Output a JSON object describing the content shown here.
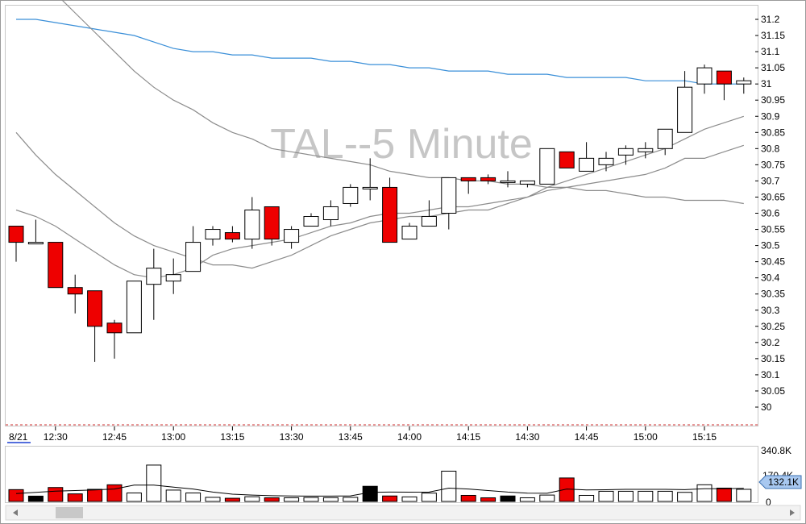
{
  "chart_title": "TAL--5 Minute",
  "date_label": "8/21",
  "price_axis_ticks": [
    "31.2",
    "31.15",
    "31.1",
    "31.05",
    "31",
    "30.95",
    "30.9",
    "30.85",
    "30.8",
    "30.75",
    "30.7",
    "30.65",
    "30.6",
    "30.55",
    "30.5",
    "30.45",
    "30.4",
    "30.35",
    "30.3",
    "30.25",
    "30.2",
    "30.15",
    "30.1",
    "30.05",
    "30"
  ],
  "time_axis_ticks": [
    "12:30",
    "12:45",
    "13:00",
    "13:15",
    "13:30",
    "13:45",
    "14:00",
    "14:15",
    "14:30",
    "14:45",
    "15:00",
    "15:15"
  ],
  "volume_axis": {
    "max_label": "340.8K",
    "mid_label": "170.4K",
    "zero_label": "0",
    "current_label": "132.1K"
  },
  "colors": {
    "up": "#ffffff",
    "down": "#ee0000",
    "volume_neutral": "#000000",
    "ma_long": "#3a8fd8",
    "ma_short": "#8c8c8c",
    "grid": "#d03030",
    "background": "#ffffff"
  },
  "chart_data": [
    {
      "type": "candlestick",
      "title": "TAL--5 Minute",
      "y_range": [
        29.97,
        31.22
      ],
      "x_time_start": "12:20",
      "bar_interval_minutes": 5,
      "ohlc": [
        {
          "o": 30.56,
          "h": 30.56,
          "l": 30.45,
          "c": 30.51
        },
        {
          "o": 30.51,
          "h": 30.58,
          "l": 30.51,
          "c": 30.51
        },
        {
          "o": 30.51,
          "h": 30.51,
          "l": 30.37,
          "c": 30.37
        },
        {
          "o": 30.37,
          "h": 30.41,
          "l": 30.29,
          "c": 30.35
        },
        {
          "o": 30.36,
          "h": 30.36,
          "l": 30.14,
          "c": 30.25
        },
        {
          "o": 30.26,
          "h": 30.27,
          "l": 30.15,
          "c": 30.23
        },
        {
          "o": 30.23,
          "h": 30.39,
          "l": 30.23,
          "c": 30.39
        },
        {
          "o": 30.38,
          "h": 30.49,
          "l": 30.27,
          "c": 30.43
        },
        {
          "o": 30.39,
          "h": 30.46,
          "l": 30.35,
          "c": 30.41
        },
        {
          "o": 30.42,
          "h": 30.56,
          "l": 30.42,
          "c": 30.51
        },
        {
          "o": 30.52,
          "h": 30.56,
          "l": 30.5,
          "c": 30.55
        },
        {
          "o": 30.54,
          "h": 30.56,
          "l": 30.51,
          "c": 30.52
        },
        {
          "o": 30.52,
          "h": 30.65,
          "l": 30.49,
          "c": 30.61
        },
        {
          "o": 30.62,
          "h": 30.62,
          "l": 30.5,
          "c": 30.52
        },
        {
          "o": 30.51,
          "h": 30.56,
          "l": 30.49,
          "c": 30.55
        },
        {
          "o": 30.56,
          "h": 30.6,
          "l": 30.56,
          "c": 30.59
        },
        {
          "o": 30.58,
          "h": 30.64,
          "l": 30.56,
          "c": 30.62
        },
        {
          "o": 30.63,
          "h": 30.69,
          "l": 30.62,
          "c": 30.68
        },
        {
          "o": 30.68,
          "h": 30.77,
          "l": 30.64,
          "c": 30.68
        },
        {
          "o": 30.68,
          "h": 30.71,
          "l": 30.51,
          "c": 30.51
        },
        {
          "o": 30.52,
          "h": 30.57,
          "l": 30.52,
          "c": 30.56
        },
        {
          "o": 30.56,
          "h": 30.64,
          "l": 30.56,
          "c": 30.59
        },
        {
          "o": 30.6,
          "h": 30.71,
          "l": 30.55,
          "c": 30.71
        },
        {
          "o": 30.71,
          "h": 30.71,
          "l": 30.66,
          "c": 30.7
        },
        {
          "o": 30.71,
          "h": 30.72,
          "l": 30.69,
          "c": 30.7
        },
        {
          "o": 30.7,
          "h": 30.73,
          "l": 30.68,
          "c": 30.7
        },
        {
          "o": 30.69,
          "h": 30.7,
          "l": 30.68,
          "c": 30.7
        },
        {
          "o": 30.69,
          "h": 30.8,
          "l": 30.69,
          "c": 30.8
        },
        {
          "o": 30.79,
          "h": 30.79,
          "l": 30.74,
          "c": 30.74
        },
        {
          "o": 30.73,
          "h": 30.82,
          "l": 30.73,
          "c": 30.77
        },
        {
          "o": 30.75,
          "h": 30.79,
          "l": 30.73,
          "c": 30.77
        },
        {
          "o": 30.78,
          "h": 30.81,
          "l": 30.75,
          "c": 30.8
        },
        {
          "o": 30.79,
          "h": 30.82,
          "l": 30.77,
          "c": 30.8
        },
        {
          "o": 30.8,
          "h": 30.86,
          "l": 30.78,
          "c": 30.86
        },
        {
          "o": 30.85,
          "h": 31.04,
          "l": 30.85,
          "c": 30.99
        },
        {
          "o": 31.0,
          "h": 31.06,
          "l": 30.97,
          "c": 31.05
        },
        {
          "o": 31.04,
          "h": 31.04,
          "l": 30.95,
          "c": 31.0
        },
        {
          "o": 31.0,
          "h": 31.02,
          "l": 30.97,
          "c": 31.01
        }
      ],
      "moving_averages": [
        {
          "color": "#3a8fd8",
          "values": [
            31.2,
            31.2,
            31.19,
            31.18,
            31.17,
            31.16,
            31.15,
            31.13,
            31.11,
            31.1,
            31.1,
            31.09,
            31.09,
            31.08,
            31.08,
            31.08,
            31.07,
            31.07,
            31.06,
            31.06,
            31.05,
            31.05,
            31.04,
            31.04,
            31.04,
            31.03,
            31.03,
            31.03,
            31.02,
            31.02,
            31.02,
            31.02,
            31.01,
            31.01,
            31.01,
            31.0,
            31.0,
            31.0
          ]
        },
        {
          "color": "#8c8c8c",
          "values": [
            31.42,
            31.34,
            31.28,
            31.22,
            31.16,
            31.1,
            31.04,
            30.99,
            30.95,
            30.92,
            30.88,
            30.85,
            30.83,
            30.8,
            30.79,
            30.78,
            30.77,
            30.76,
            30.75,
            30.73,
            30.72,
            30.71,
            30.71,
            30.7,
            30.7,
            30.69,
            30.69,
            30.68,
            30.68,
            30.67,
            30.67,
            30.66,
            30.65,
            30.65,
            30.64,
            30.64,
            30.64,
            30.63
          ]
        },
        {
          "color": "#8c8c8c",
          "values": [
            30.85,
            30.78,
            30.72,
            30.67,
            30.62,
            30.57,
            30.53,
            30.5,
            30.48,
            30.46,
            30.44,
            30.44,
            30.43,
            30.45,
            30.47,
            30.5,
            30.53,
            30.55,
            30.57,
            30.58,
            30.59,
            30.59,
            30.6,
            30.61,
            30.61,
            30.63,
            30.65,
            30.68,
            30.7,
            30.72,
            30.74,
            30.76,
            30.78,
            30.8,
            30.83,
            30.86,
            30.88,
            30.9
          ]
        },
        {
          "color": "#8c8c8c",
          "values": [
            30.61,
            30.59,
            30.56,
            30.52,
            30.48,
            30.44,
            30.41,
            30.4,
            30.41,
            30.43,
            30.47,
            30.49,
            30.5,
            30.51,
            30.52,
            30.54,
            30.56,
            30.57,
            30.59,
            30.6,
            30.6,
            30.61,
            30.62,
            30.62,
            30.63,
            30.64,
            30.65,
            30.67,
            30.68,
            30.69,
            30.7,
            30.71,
            30.72,
            30.74,
            30.77,
            30.77,
            30.79,
            30.81
          ]
        }
      ]
    },
    {
      "type": "bar",
      "title": "Volume",
      "y_range": [
        0,
        340800
      ],
      "values": [
        78000,
        35000,
        92000,
        50000,
        80000,
        110000,
        56000,
        240000,
        75000,
        56000,
        27000,
        21000,
        31000,
        24000,
        24000,
        26000,
        25000,
        27000,
        100000,
        36000,
        30000,
        55000,
        200000,
        40000,
        24000,
        36000,
        24000,
        42000,
        155000,
        40000,
        67000,
        67000,
        67000,
        67000,
        60000,
        110000,
        88000,
        80000
      ],
      "volume_colors": [
        "down",
        "neutral",
        "down",
        "down",
        "down",
        "down",
        "up",
        "up",
        "up",
        "up",
        "up",
        "down",
        "up",
        "down",
        "up",
        "up",
        "up",
        "up",
        "neutral",
        "down",
        "up",
        "up",
        "up",
        "down",
        "down",
        "neutral",
        "up",
        "up",
        "down",
        "up",
        "up",
        "up",
        "up",
        "up",
        "up",
        "up",
        "down",
        "up"
      ],
      "average_line": [
        52000,
        60000,
        68000,
        72000,
        76000,
        82000,
        108000,
        108000,
        94000,
        82000,
        62000,
        48000,
        42000,
        38000,
        36000,
        35000,
        35000,
        37000,
        60000,
        62000,
        61000,
        62000,
        88000,
        82000,
        72000,
        62000,
        55000,
        54000,
        82000,
        76000,
        77000,
        80000,
        80000,
        80000,
        78000,
        84000,
        84000,
        86000
      ]
    }
  ]
}
